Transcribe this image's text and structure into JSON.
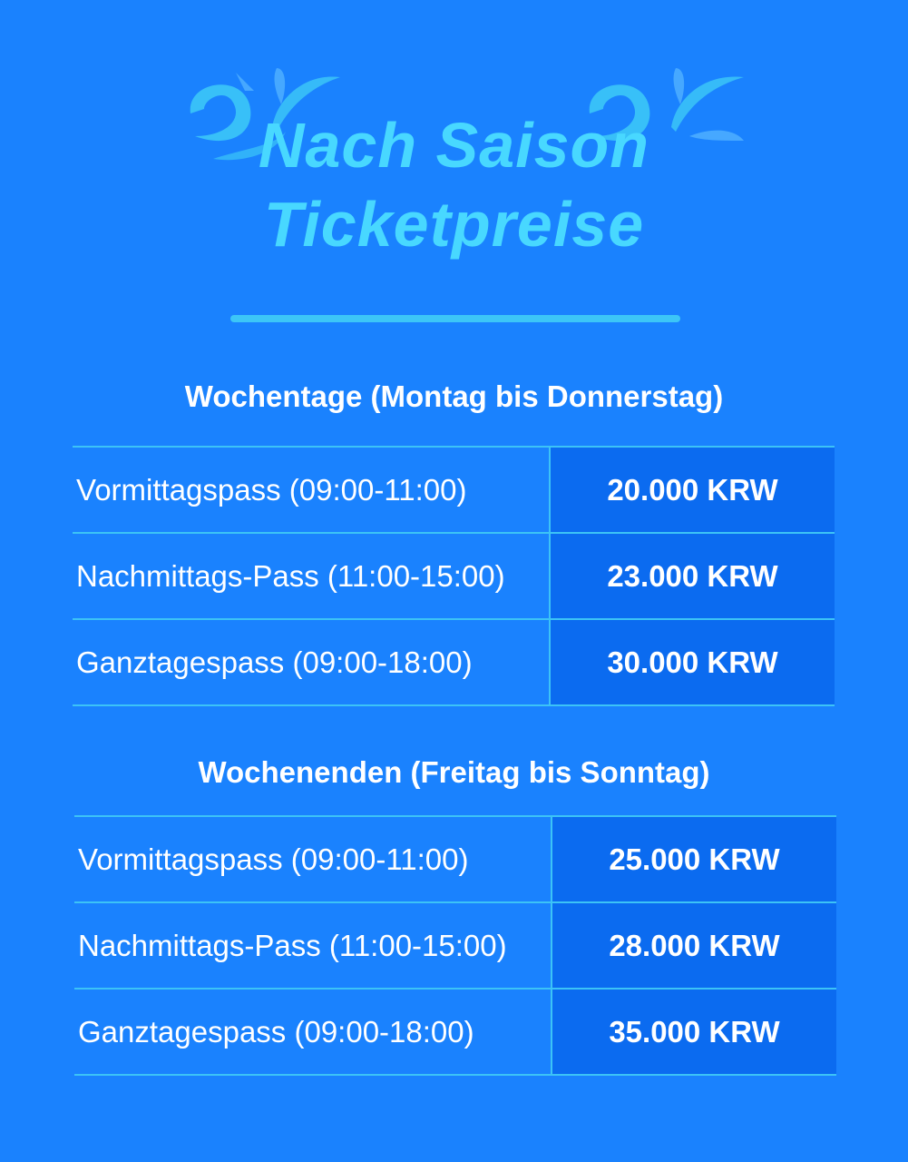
{
  "title": {
    "line1": "Nach Saison",
    "line2": "Ticketpreise"
  },
  "colors": {
    "background": "#1a82fe",
    "title": "#48d8ff",
    "price_cell": "#0b6bf0",
    "lines": "#3cc3f6"
  },
  "decorations": [
    "water-splash-icon",
    "water-splash-icon"
  ],
  "sections": [
    {
      "heading": "Wochentage (Montag bis Donnerstag)",
      "rows": [
        {
          "name": "Vormittagspass (09:00-11:00)",
          "price": "20.000 KRW"
        },
        {
          "name": "Nachmittags-Pass (11:00-15:00)",
          "price": "23.000 KRW"
        },
        {
          "name": "Ganztagespass (09:00-18:00)",
          "price": "30.000 KRW"
        }
      ]
    },
    {
      "heading": "Wochenenden (Freitag bis Sonntag)",
      "rows": [
        {
          "name": "Vormittagspass (09:00-11:00)",
          "price": "25.000 KRW"
        },
        {
          "name": "Nachmittags-Pass (11:00-15:00)",
          "price": "28.000 KRW"
        },
        {
          "name": "Ganztagespass (09:00-18:00)",
          "price": "35.000 KRW"
        }
      ]
    }
  ]
}
